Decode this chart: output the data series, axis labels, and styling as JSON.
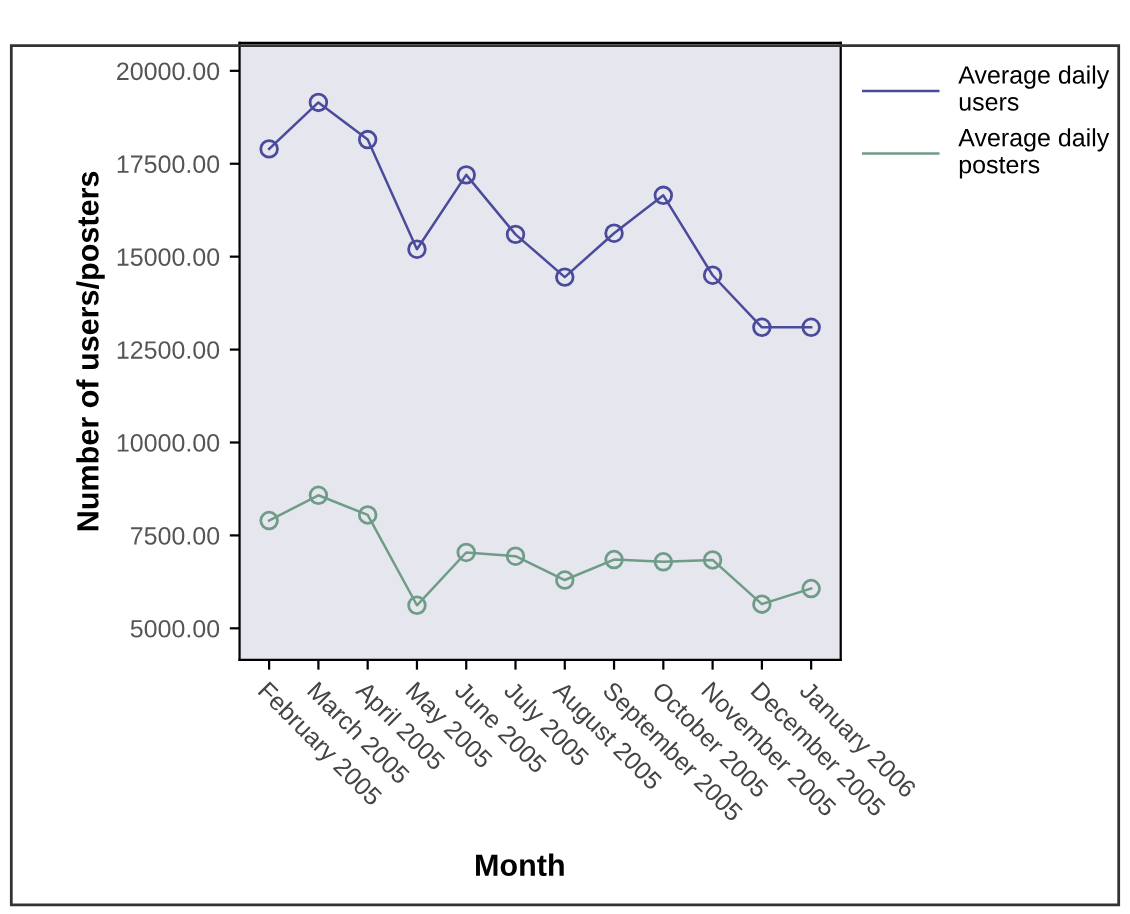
{
  "chart_data": {
    "type": "line",
    "xlabel": "Month",
    "ylabel": "Number of users/posters",
    "categories": [
      "February 2005",
      "March 2005",
      "April 2005",
      "May 2005",
      "June 2005",
      "July 2005",
      "August 2005",
      "September 2005",
      "October 2005",
      "November 2005",
      "December 2005",
      "January 2006"
    ],
    "series": [
      {
        "name": "Average daily users",
        "color": "#4b4b9c",
        "values": [
          17900,
          19150,
          18150,
          15200,
          17200,
          15600,
          14450,
          15630,
          16650,
          14500,
          13100,
          13100
        ]
      },
      {
        "name": "Average daily posters",
        "color": "#6e9c86",
        "values": [
          7900,
          8580,
          8050,
          5620,
          7040,
          6940,
          6300,
          6850,
          6790,
          6840,
          5650,
          6070
        ]
      }
    ],
    "ylim": [
      4150,
      20750
    ],
    "yticks": [
      {
        "value": 5000,
        "label": "5000.00"
      },
      {
        "value": 7500,
        "label": "7500.00"
      },
      {
        "value": 10000,
        "label": "10000.00"
      },
      {
        "value": 12500,
        "label": "12500.00"
      },
      {
        "value": 15000,
        "label": "15000.00"
      },
      {
        "value": 17500,
        "label": "17500.00"
      },
      {
        "value": 20000,
        "label": "20000.00"
      }
    ],
    "marker": "circle",
    "line_style": "solid",
    "legend": "right",
    "grid": false
  }
}
